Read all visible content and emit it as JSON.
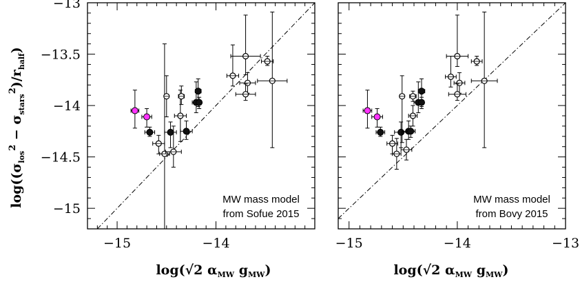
{
  "chart_data": [
    {
      "type": "scatter",
      "annotation": [
        "MW mass model",
        "from Sofue 2015"
      ],
      "xlabel": "log(√2 α_MW g_MW)",
      "ylabel": "log((σ_los² − σ_stars²)/r_half)",
      "xlim": [
        -15.3,
        -13.0
      ],
      "ylim": [
        -15.2,
        -13.0
      ],
      "x_ticks": [
        -15,
        -14
      ],
      "x_tick_labels": [
        "−15",
        "−14"
      ],
      "y_ticks": [
        -15,
        -14.5,
        -14,
        -13.5,
        -13
      ],
      "y_tick_labels": [
        "−15",
        "−14.5",
        "−14",
        "−13.5",
        "−13"
      ],
      "reference_line": "one-to-one (dash-dot)",
      "series": [
        {
          "marker": "magenta filled circle",
          "points": [
            {
              "x": -14.82,
              "y": -14.05,
              "xerr": 0.04,
              "yerr_lo": 0.17,
              "yerr_hi": 0.2
            },
            {
              "x": -14.7,
              "y": -14.11,
              "xerr": 0.05,
              "yerr_lo": 0.1,
              "yerr_hi": 0.08
            }
          ]
        },
        {
          "marker": "black filled circle",
          "points": [
            {
              "x": -14.67,
              "y": -14.26,
              "xerr": 0.05,
              "yerr_lo": 0.04,
              "yerr_hi": 0.05
            },
            {
              "x": -14.46,
              "y": -14.26,
              "xerr": 0.06,
              "yerr_lo": 0.15,
              "yerr_hi": 0.1
            },
            {
              "x": -14.3,
              "y": -14.25,
              "xerr": 0.06,
              "yerr_lo": 0.08,
              "yerr_hi": 0.1
            },
            {
              "x": -14.2,
              "y": -13.97,
              "xerr": 0.04,
              "yerr_lo": 0.1,
              "yerr_hi": 0.2
            },
            {
              "x": -14.18,
              "y": -13.86,
              "xerr": 0.03,
              "yerr_lo": 0.15,
              "yerr_hi": 0.12
            },
            {
              "x": -14.17,
              "y": -13.97,
              "xerr": 0.02,
              "yerr_lo": 0.06,
              "yerr_hi": 0.05
            }
          ]
        },
        {
          "marker": "open circle",
          "points": [
            {
              "x": -14.58,
              "y": -14.37,
              "xerr": 0.06,
              "yerr_lo": 0.1,
              "yerr_hi": 0.08
            },
            {
              "x": -14.52,
              "y": -14.47,
              "xerr": 0.05,
              "yerr_lo": 1.13,
              "yerr_hi": 1.07
            },
            {
              "x": -14.5,
              "y": -13.91,
              "xerr": 0.02,
              "yerr_lo": 0.2,
              "yerr_hi": 0.2
            },
            {
              "x": -14.43,
              "y": -14.45,
              "xerr": 0.08,
              "yerr_lo": 0.15,
              "yerr_hi": 0.25
            },
            {
              "x": -14.36,
              "y": -14.1,
              "xerr": 0.06,
              "yerr_lo": 0.25,
              "yerr_hi": 0.25
            },
            {
              "x": -14.35,
              "y": -13.91,
              "xerr": 0.03,
              "yerr_lo": 0.08,
              "yerr_hi": 0.1
            },
            {
              "x": -13.83,
              "y": -13.71,
              "xerr": 0.06,
              "yerr_lo": 0.1,
              "yerr_hi": 0.3
            },
            {
              "x": -13.7,
              "y": -13.52,
              "xerr": 0.15,
              "yerr_lo": 0.18,
              "yerr_hi": 0.4
            },
            {
              "x": -13.68,
              "y": -13.78,
              "xerr": 0.08,
              "yerr_lo": 0.1,
              "yerr_hi": 0.1
            },
            {
              "x": -13.7,
              "y": -13.89,
              "xerr": 0.1,
              "yerr_lo": 0.06,
              "yerr_hi": 0.1
            },
            {
              "x": -13.48,
              "y": -13.57,
              "xerr": 0.06,
              "yerr_lo": 0.04,
              "yerr_hi": 0.05
            },
            {
              "x": -13.43,
              "y": -13.76,
              "xerr": 0.15,
              "yerr_lo": 0.65,
              "yerr_hi": 0.67
            }
          ]
        }
      ]
    },
    {
      "type": "scatter",
      "annotation": [
        "MW mass model",
        "from Bovy 2015"
      ],
      "xlabel": "log(√2 α_MW g_MW)",
      "ylabel": "",
      "xlim": [
        -15.1,
        -13.0
      ],
      "ylim": [
        -15.2,
        -13.0
      ],
      "x_ticks": [
        -15,
        -14,
        -13
      ],
      "x_tick_labels": [
        "−15",
        "−14",
        "−13"
      ],
      "y_ticks": [
        -15,
        -14.5,
        -14,
        -13.5,
        -13
      ],
      "y_tick_labels": [],
      "reference_line": "one-to-one (dash-dot)",
      "series": [
        {
          "marker": "magenta filled circle",
          "points": [
            {
              "x": -14.83,
              "y": -14.05,
              "xerr": 0.04,
              "yerr_lo": 0.17,
              "yerr_hi": 0.2
            },
            {
              "x": -14.74,
              "y": -14.11,
              "xerr": 0.05,
              "yerr_lo": 0.1,
              "yerr_hi": 0.08
            }
          ]
        },
        {
          "marker": "black filled circle",
          "points": [
            {
              "x": -14.71,
              "y": -14.26,
              "xerr": 0.04,
              "yerr_lo": 0.04,
              "yerr_hi": 0.05
            },
            {
              "x": -14.52,
              "y": -14.26,
              "xerr": 0.06,
              "yerr_lo": 0.15,
              "yerr_hi": 0.1
            },
            {
              "x": -14.45,
              "y": -14.25,
              "xerr": 0.06,
              "yerr_lo": 0.08,
              "yerr_hi": 0.1
            },
            {
              "x": -14.43,
              "y": -14.25,
              "xerr": 0.04,
              "yerr_lo": 0.06,
              "yerr_hi": 0.05
            },
            {
              "x": -14.36,
              "y": -13.97,
              "xerr": 0.04,
              "yerr_lo": 0.1,
              "yerr_hi": 0.2
            },
            {
              "x": -14.33,
              "y": -13.86,
              "xerr": 0.03,
              "yerr_lo": 0.15,
              "yerr_hi": 0.12
            },
            {
              "x": -14.33,
              "y": -13.97,
              "xerr": 0.02,
              "yerr_lo": 0.06,
              "yerr_hi": 0.05
            }
          ]
        },
        {
          "marker": "open circle",
          "points": [
            {
              "x": -14.6,
              "y": -14.37,
              "xerr": 0.05,
              "yerr_lo": 0.1,
              "yerr_hi": 0.08
            },
            {
              "x": -14.56,
              "y": -14.47,
              "xerr": 0.04,
              "yerr_lo": 0.15,
              "yerr_hi": 0.15
            },
            {
              "x": -14.51,
              "y": -13.91,
              "xerr": 0.02,
              "yerr_lo": 0.45,
              "yerr_hi": 0.2
            },
            {
              "x": -14.47,
              "y": -14.43,
              "xerr": 0.05,
              "yerr_lo": 0.1,
              "yerr_hi": 0.1
            },
            {
              "x": -14.41,
              "y": -14.1,
              "xerr": 0.04,
              "yerr_lo": 0.1,
              "yerr_hi": 0.1
            },
            {
              "x": -14.41,
              "y": -13.91,
              "xerr": 0.03,
              "yerr_lo": 0.05,
              "yerr_hi": 0.05
            },
            {
              "x": -14.06,
              "y": -13.72,
              "xerr": 0.05,
              "yerr_lo": 0.1,
              "yerr_hi": 0.2
            },
            {
              "x": -14.0,
              "y": -13.52,
              "xerr": 0.1,
              "yerr_lo": 0.1,
              "yerr_hi": 0.4
            },
            {
              "x": -13.98,
              "y": -13.78,
              "xerr": 0.05,
              "yerr_lo": 0.1,
              "yerr_hi": 0.1
            },
            {
              "x": -14.0,
              "y": -13.89,
              "xerr": 0.08,
              "yerr_lo": 0.06,
              "yerr_hi": 0.1
            },
            {
              "x": -13.82,
              "y": -13.57,
              "xerr": 0.05,
              "yerr_lo": 0.04,
              "yerr_hi": 0.05
            },
            {
              "x": -13.75,
              "y": -13.76,
              "xerr": 0.12,
              "yerr_lo": 0.65,
              "yerr_hi": 0.67
            }
          ]
        }
      ]
    }
  ],
  "colors": {
    "magenta": "#ff33ff",
    "marker_fill": "#111111",
    "axis": "#000000"
  }
}
